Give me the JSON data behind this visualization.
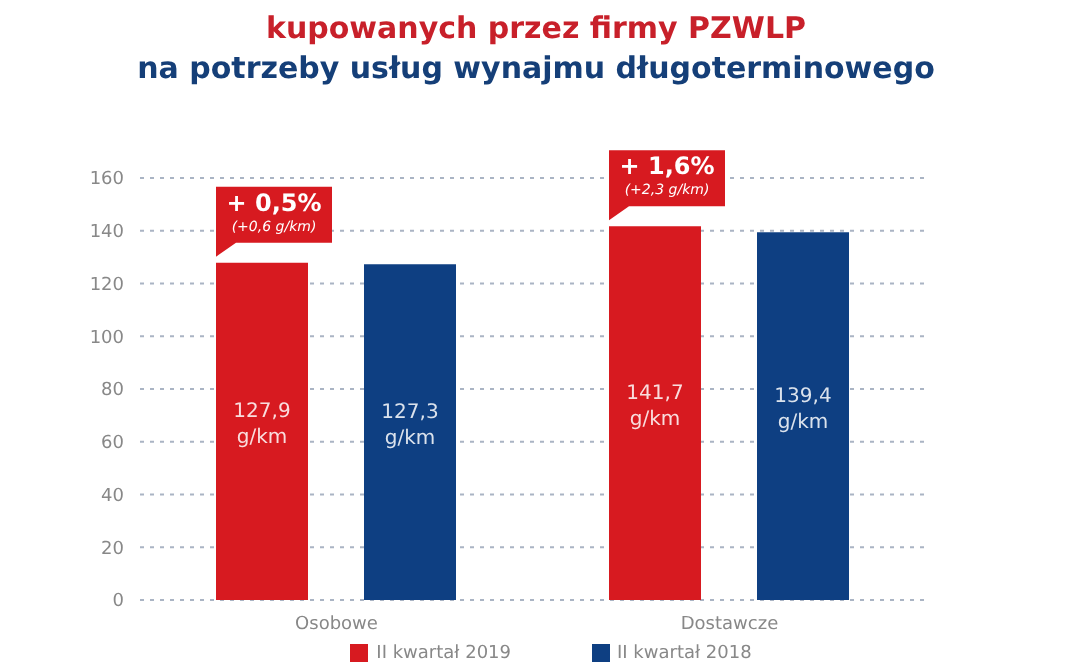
{
  "chart_data": {
    "type": "bar",
    "title": "kupowanych przez firmy PZWLP",
    "subtitle": "na potrzeby usług wynajmu długoterminowego",
    "categories": [
      "Osobowe",
      "Dostawcze"
    ],
    "series": [
      {
        "name": "II kwartał 2019",
        "color": "#d71a20",
        "values": [
          127.9,
          141.7
        ],
        "value_labels": [
          "127,9\ng/km",
          "141,7\ng/km"
        ]
      },
      {
        "name": "II kwartał 2018",
        "color": "#0e3f82",
        "values": [
          127.3,
          139.4
        ],
        "value_labels": [
          "127,3\ng/km",
          "139,4\ng/km"
        ]
      }
    ],
    "annotations": [
      "+ 0,5%\n(+0,6 g/km)",
      "+ 1,6%\n(+2,3 g/km)"
    ],
    "ylim": [
      0,
      160
    ],
    "yticks": [
      0,
      20,
      40,
      60,
      80,
      100,
      120,
      140,
      160
    ],
    "grid": "y",
    "legend": "bottom"
  }
}
